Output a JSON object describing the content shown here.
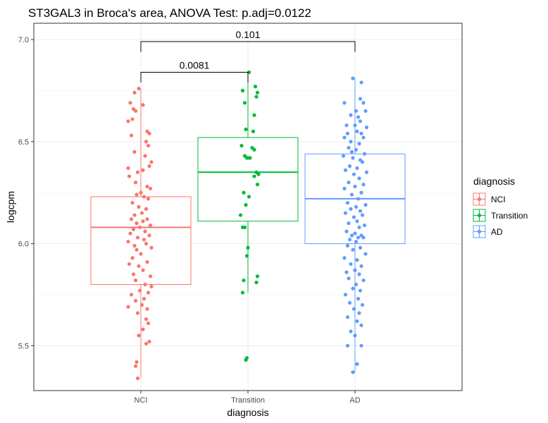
{
  "chart_data": {
    "type": "box",
    "title": "ST3GAL3 in Broca's area, ANOVA Test: p.adj=0.0122",
    "xlabel": "diagnosis",
    "ylabel": "logcpm",
    "categories": [
      "NCI",
      "Transition",
      "AD"
    ],
    "ylim": [
      5.28,
      7.08
    ],
    "yticks": [
      5.5,
      6.0,
      6.5,
      7.0
    ],
    "yticklabels": [
      "5.5",
      "6.0",
      "6.5",
      "7.0"
    ],
    "grid": true,
    "legend": {
      "title": "diagnosis",
      "position": "right",
      "entries": [
        "NCI",
        "Transition",
        "AD"
      ]
    },
    "colors": {
      "NCI": "#F8766D",
      "Transition": "#00BA38",
      "AD": "#619CFF"
    },
    "series": [
      {
        "name": "NCI",
        "q1": 5.8,
        "median": 6.08,
        "q3": 6.23,
        "whisker_low": 5.34,
        "whisker_high": 6.76,
        "points": [
          [
            -0.02,
            6.76
          ],
          [
            -0.06,
            6.74
          ],
          [
            -0.1,
            6.69
          ],
          [
            0.02,
            6.68
          ],
          [
            -0.07,
            6.66
          ],
          [
            -0.05,
            6.65
          ],
          [
            -0.08,
            6.61
          ],
          [
            -0.12,
            6.6
          ],
          [
            0.06,
            6.55
          ],
          [
            0.08,
            6.54
          ],
          [
            -0.09,
            6.53
          ],
          [
            0.05,
            6.5
          ],
          [
            0.07,
            6.48
          ],
          [
            -0.06,
            6.45
          ],
          [
            0.04,
            6.43
          ],
          [
            0.1,
            6.4
          ],
          [
            0.08,
            6.38
          ],
          [
            -0.12,
            6.37
          ],
          [
            0.02,
            6.36
          ],
          [
            -0.03,
            6.35
          ],
          [
            -0.11,
            6.33
          ],
          [
            -0.05,
            6.3
          ],
          [
            0.06,
            6.28
          ],
          [
            0.09,
            6.27
          ],
          [
            0.0,
            6.25
          ],
          [
            -0.04,
            6.24
          ],
          [
            0.03,
            6.23
          ],
          [
            0.07,
            6.22
          ],
          [
            -0.08,
            6.2
          ],
          [
            -0.02,
            6.18
          ],
          [
            0.05,
            6.17
          ],
          [
            0.01,
            6.15
          ],
          [
            -0.06,
            6.14
          ],
          [
            0.06,
            6.12
          ],
          [
            -0.09,
            6.12
          ],
          [
            0.02,
            6.11
          ],
          [
            -0.04,
            6.1
          ],
          [
            0.09,
            6.09
          ],
          [
            -0.01,
            6.08
          ],
          [
            -0.07,
            6.07
          ],
          [
            0.04,
            6.06
          ],
          [
            -0.1,
            6.05
          ],
          [
            0.08,
            6.04
          ],
          [
            -0.03,
            6.03
          ],
          [
            0.03,
            6.02
          ],
          [
            -0.12,
            6.01
          ],
          [
            0.05,
            6.0
          ],
          [
            -0.06,
            5.99
          ],
          [
            0.1,
            5.98
          ],
          [
            -0.04,
            5.97
          ],
          [
            0.0,
            5.95
          ],
          [
            -0.08,
            5.93
          ],
          [
            0.06,
            5.91
          ],
          [
            -0.11,
            5.9
          ],
          [
            -0.02,
            5.89
          ],
          [
            0.02,
            5.87
          ],
          [
            -0.07,
            5.85
          ],
          [
            0.09,
            5.84
          ],
          [
            -0.05,
            5.82
          ],
          [
            0.04,
            5.8
          ],
          [
            0.1,
            5.79
          ],
          [
            -0.01,
            5.77
          ],
          [
            0.07,
            5.76
          ],
          [
            -0.09,
            5.75
          ],
          [
            0.03,
            5.73
          ],
          [
            -0.05,
            5.72
          ],
          [
            0.01,
            5.7
          ],
          [
            -0.12,
            5.69
          ],
          [
            0.06,
            5.68
          ],
          [
            -0.03,
            5.66
          ],
          [
            0.05,
            5.63
          ],
          [
            0.07,
            5.61
          ],
          [
            0.02,
            5.58
          ],
          [
            -0.02,
            5.55
          ],
          [
            0.08,
            5.52
          ],
          [
            0.05,
            5.51
          ],
          [
            -0.04,
            5.42
          ],
          [
            -0.05,
            5.4
          ],
          [
            -0.03,
            5.34
          ]
        ]
      },
      {
        "name": "Transition",
        "q1": 6.11,
        "median": 6.35,
        "q3": 6.52,
        "whisker_low": 5.76,
        "whisker_high": 6.84,
        "points": [
          [
            0.01,
            6.84
          ],
          [
            0.07,
            6.77
          ],
          [
            -0.05,
            6.75
          ],
          [
            0.09,
            6.74
          ],
          [
            0.08,
            6.72
          ],
          [
            -0.03,
            6.69
          ],
          [
            0.06,
            6.63
          ],
          [
            -0.02,
            6.56
          ],
          [
            0.05,
            6.55
          ],
          [
            -0.06,
            6.48
          ],
          [
            0.04,
            6.47
          ],
          [
            0.06,
            6.46
          ],
          [
            -0.03,
            6.43
          ],
          [
            0.0,
            6.42
          ],
          [
            0.02,
            6.42
          ],
          [
            -0.01,
            6.42
          ],
          [
            0.08,
            6.35
          ],
          [
            0.1,
            6.34
          ],
          [
            0.06,
            6.33
          ],
          [
            0.09,
            6.29
          ],
          [
            -0.04,
            6.25
          ],
          [
            0.01,
            6.23
          ],
          [
            -0.02,
            6.19
          ],
          [
            -0.07,
            6.14
          ],
          [
            -0.05,
            6.08
          ],
          [
            -0.03,
            6.08
          ],
          [
            0.0,
            5.98
          ],
          [
            -0.01,
            5.94
          ],
          [
            0.09,
            5.84
          ],
          [
            -0.04,
            5.82
          ],
          [
            0.08,
            5.81
          ],
          [
            -0.05,
            5.76
          ],
          [
            -0.01,
            5.44
          ],
          [
            -0.02,
            5.43
          ]
        ]
      },
      {
        "name": "AD",
        "q1": 6.0,
        "median": 6.22,
        "q3": 6.44,
        "whisker_low": 5.37,
        "whisker_high": 6.81,
        "points": [
          [
            -0.02,
            6.81
          ],
          [
            0.06,
            6.79
          ],
          [
            0.05,
            6.71
          ],
          [
            -0.1,
            6.69
          ],
          [
            0.08,
            6.69
          ],
          [
            0.01,
            6.65
          ],
          [
            0.1,
            6.65
          ],
          [
            -0.04,
            6.63
          ],
          [
            0.03,
            6.62
          ],
          [
            0.05,
            6.6
          ],
          [
            -0.08,
            6.58
          ],
          [
            0.0,
            6.58
          ],
          [
            0.11,
            6.57
          ],
          [
            0.02,
            6.55
          ],
          [
            -0.07,
            6.54
          ],
          [
            0.06,
            6.54
          ],
          [
            -0.1,
            6.52
          ],
          [
            0.08,
            6.52
          ],
          [
            -0.04,
            6.5
          ],
          [
            0.04,
            6.49
          ],
          [
            -0.06,
            6.47
          ],
          [
            0.01,
            6.46
          ],
          [
            -0.03,
            6.45
          ],
          [
            0.09,
            6.44
          ],
          [
            -0.11,
            6.43
          ],
          [
            -0.02,
            6.42
          ],
          [
            0.05,
            6.41
          ],
          [
            0.07,
            6.4
          ],
          [
            -0.05,
            6.38
          ],
          [
            0.02,
            6.37
          ],
          [
            -0.09,
            6.36
          ],
          [
            0.11,
            6.35
          ],
          [
            -0.01,
            6.34
          ],
          [
            0.04,
            6.32
          ],
          [
            -0.06,
            6.3
          ],
          [
            0.08,
            6.29
          ],
          [
            0.0,
            6.28
          ],
          [
            -0.1,
            6.27
          ],
          [
            0.06,
            6.25
          ],
          [
            -0.03,
            6.24
          ],
          [
            0.03,
            6.22
          ],
          [
            -0.07,
            6.2
          ],
          [
            0.1,
            6.19
          ],
          [
            0.01,
            6.18
          ],
          [
            -0.04,
            6.17
          ],
          [
            0.05,
            6.16
          ],
          [
            -0.09,
            6.15
          ],
          [
            0.07,
            6.14
          ],
          [
            -0.01,
            6.13
          ],
          [
            0.02,
            6.11
          ],
          [
            -0.06,
            6.1
          ],
          [
            0.09,
            6.09
          ],
          [
            0.04,
            6.08
          ],
          [
            -0.08,
            6.06
          ],
          [
            0.0,
            6.05
          ],
          [
            0.06,
            6.04
          ],
          [
            -0.03,
            6.04
          ],
          [
            0.03,
            6.03
          ],
          [
            -0.05,
            6.02
          ],
          [
            0.08,
            6.03
          ],
          [
            0.01,
            6.01
          ],
          [
            -0.07,
            5.99
          ],
          [
            0.05,
            5.98
          ],
          [
            -0.02,
            5.97
          ],
          [
            0.1,
            5.95
          ],
          [
            -0.1,
            5.93
          ],
          [
            0.02,
            5.92
          ],
          [
            -0.04,
            5.9
          ],
          [
            0.06,
            5.89
          ],
          [
            0.0,
            5.87
          ],
          [
            -0.08,
            5.86
          ],
          [
            0.04,
            5.85
          ],
          [
            -0.06,
            5.83
          ],
          [
            0.08,
            5.82
          ],
          [
            0.01,
            5.8
          ],
          [
            -0.02,
            5.78
          ],
          [
            0.05,
            5.77
          ],
          [
            -0.09,
            5.75
          ],
          [
            0.03,
            5.73
          ],
          [
            -0.05,
            5.71
          ],
          [
            0.07,
            5.7
          ],
          [
            -0.01,
            5.68
          ],
          [
            0.04,
            5.66
          ],
          [
            -0.07,
            5.64
          ],
          [
            0.02,
            5.62
          ],
          [
            0.06,
            5.6
          ],
          [
            -0.04,
            5.57
          ],
          [
            0.0,
            5.55
          ],
          [
            -0.07,
            5.5
          ],
          [
            0.06,
            5.5
          ],
          [
            0.02,
            5.41
          ],
          [
            -0.02,
            5.37
          ]
        ]
      }
    ],
    "annotations": [
      {
        "text": "0.0081",
        "from": "NCI",
        "to": "Transition",
        "y": 6.84,
        "drop": 0.05
      },
      {
        "text": "0.101",
        "from": "NCI",
        "to": "AD",
        "y": 6.99,
        "drop": 0.05
      }
    ]
  }
}
